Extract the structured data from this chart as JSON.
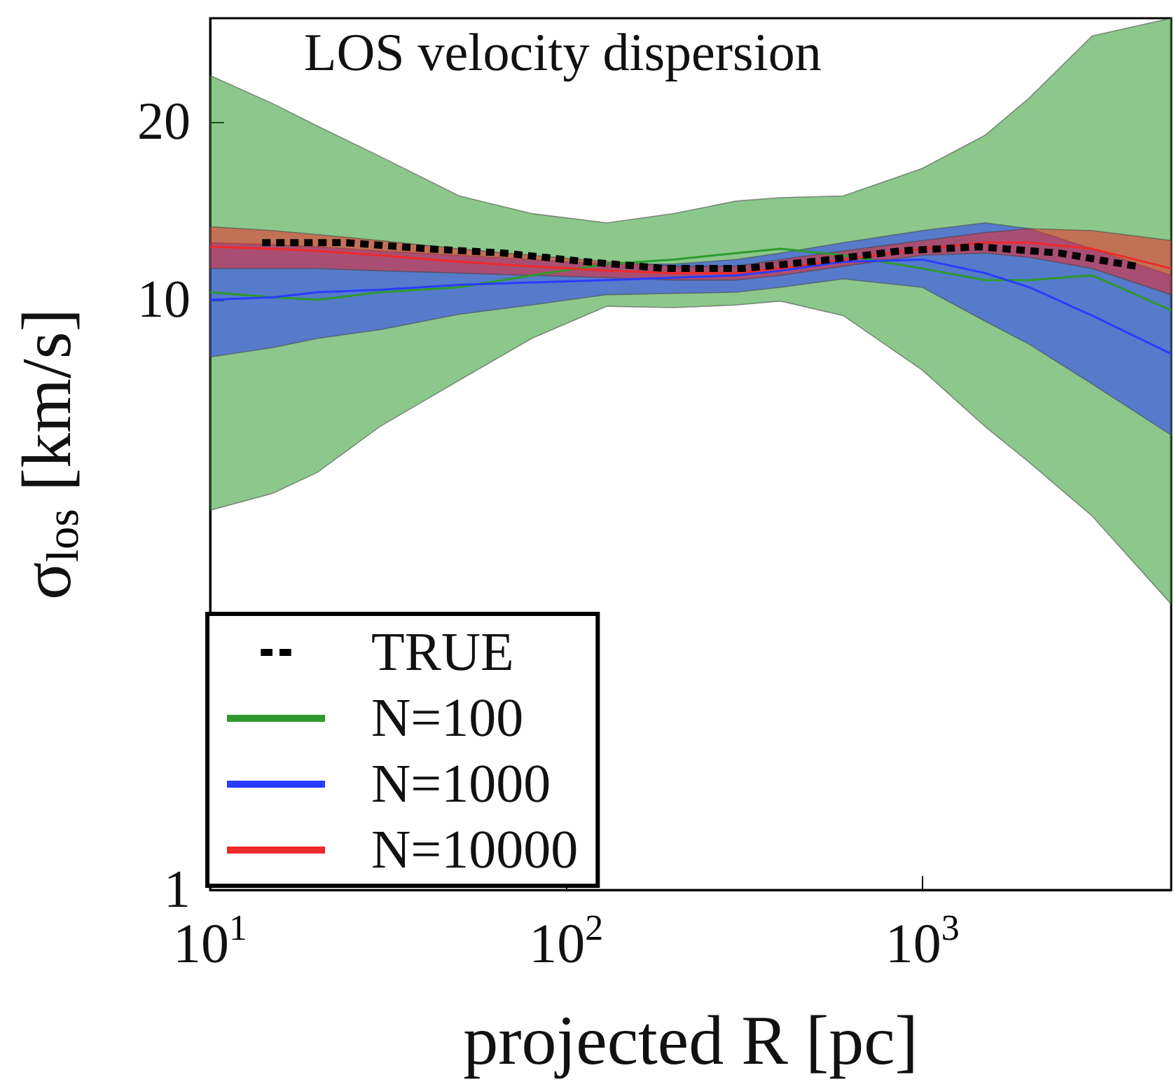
{
  "chart_data": {
    "type": "line",
    "title": "LOS velocity dispersion",
    "xlabel": "projected R [pc]",
    "ylabel": "σ$_{los}$ [km/s]",
    "log": "xy",
    "xlim": [
      10,
      5000
    ],
    "ylim": [
      1,
      30
    ],
    "xticks": [
      {
        "value": 10,
        "label": "10$^{1}$"
      },
      {
        "value": 100,
        "label": "10$^{2}$"
      },
      {
        "value": 1000,
        "label": "10$^{3}$"
      }
    ],
    "yticks": [
      1,
      10,
      20
    ],
    "grid": false,
    "legend": "bottom left",
    "series": [
      {
        "name": "TRUE",
        "line_style": "dashed",
        "color": "#000000",
        "x": [
          14,
          24,
          41,
          67,
          114,
          189,
          314,
          520,
          865,
          1435,
          2430,
          3990
        ],
        "values": [
          12.5,
          12.5,
          12.2,
          12.0,
          11.6,
          11.3,
          11.3,
          11.65,
          12.1,
          12.3,
          12.0,
          11.4
        ]
      },
      {
        "name": "N=100",
        "color": "#2e9a2e",
        "x": [
          10,
          15,
          20,
          30,
          50,
          80,
          130,
          200,
          300,
          400,
          600,
          1000,
          1500,
          2000,
          3000,
          5000
        ],
        "values": [
          10.3,
          10.1,
          10.0,
          10.3,
          10.5,
          11.0,
          11.5,
          11.7,
          12.0,
          12.2,
          11.9,
          11.3,
          10.8,
          10.8,
          11.0,
          9.6
        ],
        "lower": [
          4.4,
          4.7,
          5.1,
          6.1,
          7.3,
          8.6,
          9.75,
          9.7,
          9.8,
          9.95,
          9.4,
          7.6,
          6.1,
          5.3,
          4.3,
          3.05
        ],
        "upper": [
          24,
          21.5,
          19.7,
          17.5,
          15.0,
          14.0,
          13.5,
          14.0,
          14.7,
          14.9,
          15.0,
          16.7,
          19.0,
          22,
          28,
          30
        ]
      },
      {
        "name": "N=1000",
        "color": "#2a3cff",
        "x": [
          10,
          15,
          20,
          30,
          50,
          80,
          130,
          200,
          300,
          400,
          600,
          1000,
          1500,
          2000,
          3000,
          5000
        ],
        "values": [
          10.0,
          10.1,
          10.3,
          10.4,
          10.6,
          10.7,
          10.8,
          10.9,
          11.0,
          11.2,
          11.6,
          11.7,
          11.1,
          10.5,
          9.4,
          8.1
        ],
        "lower": [
          8.0,
          8.3,
          8.6,
          8.9,
          9.45,
          9.8,
          10.2,
          10.25,
          10.3,
          10.5,
          10.85,
          10.5,
          9.2,
          8.4,
          7.2,
          5.9
        ],
        "upper": [
          12.5,
          12.4,
          12.3,
          12.1,
          11.9,
          11.7,
          11.5,
          11.5,
          11.7,
          12.0,
          12.5,
          13.1,
          13.5,
          13.2,
          12.2,
          11.0
        ]
      },
      {
        "name": "N=10000",
        "color": "#ee2a2a",
        "x": [
          10,
          15,
          20,
          30,
          50,
          80,
          130,
          200,
          300,
          400,
          600,
          1000,
          1500,
          2000,
          3000,
          5000
        ],
        "values": [
          12.3,
          12.2,
          12.1,
          11.9,
          11.6,
          11.4,
          11.2,
          11.1,
          11.1,
          11.3,
          11.7,
          12.2,
          12.5,
          12.5,
          12.2,
          11.3
        ],
        "lower": [
          11.3,
          11.3,
          11.3,
          11.2,
          11.1,
          11.0,
          10.9,
          10.8,
          10.8,
          11.0,
          11.4,
          11.9,
          12.0,
          11.8,
          11.3,
          10.2
        ],
        "upper": [
          13.3,
          13.1,
          12.9,
          12.6,
          12.2,
          11.9,
          11.6,
          11.4,
          11.4,
          11.7,
          12.1,
          12.6,
          13.0,
          13.2,
          13.1,
          12.6
        ]
      }
    ]
  }
}
